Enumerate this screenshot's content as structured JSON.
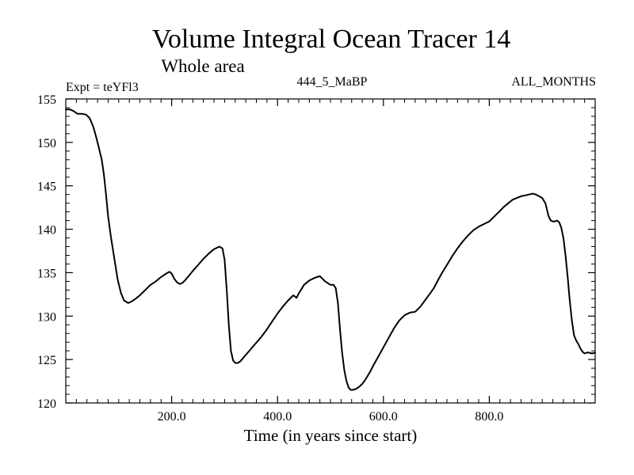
{
  "chart_data": {
    "type": "line",
    "title": "Volume Integral Ocean Tracer 14",
    "subtitle": "Whole area",
    "expt_label": "Expt = teYFl3",
    "run_label": "444_5_MaBP",
    "months_label": "ALL_MONTHS",
    "xlabel": "Time (in years since start)",
    "ylabel": "",
    "xlim": [
      0,
      1000
    ],
    "ylim": [
      120,
      155
    ],
    "x_ticks": [
      {
        "value": 200,
        "label": "200.0"
      },
      {
        "value": 400,
        "label": "400.0"
      },
      {
        "value": 600,
        "label": "600.0"
      },
      {
        "value": 800,
        "label": "800.0"
      }
    ],
    "y_ticks": [
      {
        "value": 120,
        "label": "120"
      },
      {
        "value": 125,
        "label": "125"
      },
      {
        "value": 130,
        "label": "130"
      },
      {
        "value": 135,
        "label": "135"
      },
      {
        "value": 140,
        "label": "140"
      },
      {
        "value": 145,
        "label": "145"
      },
      {
        "value": 150,
        "label": "150"
      },
      {
        "value": 155,
        "label": "155"
      }
    ],
    "series": [
      {
        "name": "Ocean Tracer 14",
        "color": "#000000",
        "x": [
          0,
          8,
          15,
          22,
          30,
          38,
          45,
          52,
          58,
          62,
          68,
          72,
          76,
          80,
          85,
          92,
          98,
          104,
          110,
          118,
          125,
          132,
          140,
          150,
          160,
          170,
          180,
          190,
          196,
          200,
          205,
          210,
          215,
          220,
          225,
          232,
          240,
          250,
          260,
          270,
          280,
          290,
          296,
          300,
          304,
          308,
          312,
          316,
          320,
          325,
          330,
          338,
          348,
          358,
          368,
          378,
          390,
          400,
          410,
          420,
          430,
          436,
          440,
          445,
          450,
          460,
          470,
          480,
          490,
          500,
          506,
          510,
          514,
          518,
          522,
          526,
          530,
          534,
          538,
          542,
          548,
          555,
          560,
          565,
          570,
          575,
          580,
          590,
          600,
          610,
          620,
          630,
          640,
          650,
          660,
          670,
          676,
          682,
          688,
          695,
          702,
          710,
          720,
          730,
          740,
          750,
          760,
          770,
          780,
          790,
          800,
          810,
          820,
          828,
          836,
          844,
          852,
          860,
          868,
          875,
          882,
          888,
          894,
          900,
          906,
          912,
          916,
          920,
          924,
          928,
          932,
          936,
          940,
          944,
          948,
          952,
          956,
          960,
          964,
          968,
          972,
          976,
          980,
          984,
          988,
          994,
          1000
        ],
        "y": [
          153.8,
          153.8,
          153.6,
          153.3,
          153.3,
          153.2,
          152.8,
          151.8,
          150.5,
          149.5,
          148.0,
          146.3,
          144.0,
          141.5,
          139.2,
          136.5,
          134.2,
          132.7,
          131.8,
          131.5,
          131.7,
          132.0,
          132.4,
          133.0,
          133.6,
          134.0,
          134.5,
          134.9,
          135.1,
          134.9,
          134.3,
          133.9,
          133.7,
          133.8,
          134.1,
          134.6,
          135.2,
          135.9,
          136.6,
          137.2,
          137.7,
          138.0,
          137.8,
          136.5,
          133.0,
          129.0,
          126.0,
          124.9,
          124.6,
          124.6,
          124.8,
          125.4,
          126.1,
          126.8,
          127.5,
          128.3,
          129.4,
          130.3,
          131.1,
          131.8,
          132.4,
          132.1,
          132.6,
          133.1,
          133.6,
          134.1,
          134.4,
          134.6,
          134.0,
          133.6,
          133.6,
          133.2,
          131.5,
          128.5,
          125.8,
          123.8,
          122.6,
          121.8,
          121.5,
          121.5,
          121.6,
          121.9,
          122.2,
          122.6,
          123.1,
          123.6,
          124.2,
          125.3,
          126.4,
          127.5,
          128.6,
          129.5,
          130.1,
          130.4,
          130.5,
          131.1,
          131.6,
          132.1,
          132.6,
          133.2,
          134.0,
          134.9,
          135.9,
          136.9,
          137.8,
          138.6,
          139.3,
          139.9,
          140.3,
          140.6,
          140.9,
          141.5,
          142.1,
          142.6,
          143.0,
          143.4,
          143.6,
          143.8,
          143.9,
          144.0,
          144.1,
          144.0,
          143.8,
          143.6,
          143.0,
          141.5,
          141.0,
          140.9,
          140.9,
          141.0,
          140.8,
          140.2,
          139.0,
          137.0,
          134.5,
          131.8,
          129.5,
          127.8,
          127.2,
          126.8,
          126.3,
          125.9,
          125.7,
          125.8,
          125.8,
          125.7,
          125.8
        ]
      }
    ]
  }
}
